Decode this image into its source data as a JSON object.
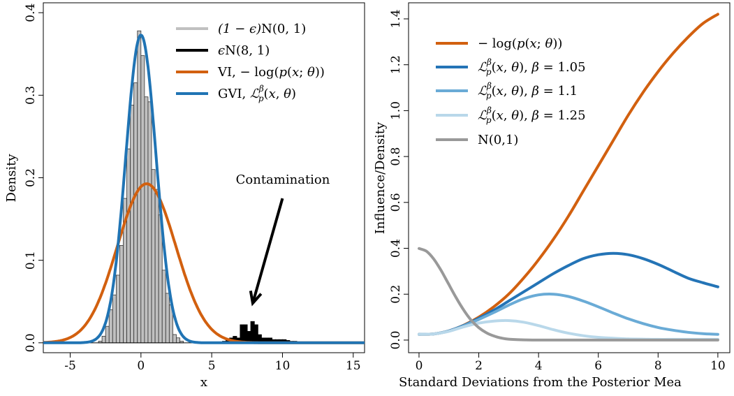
{
  "chart_data": [
    {
      "type": "histogram",
      "title": "",
      "xlabel": "x",
      "ylabel": "Density",
      "xlim": [
        -6.9,
        15.8
      ],
      "ylim": [
        -0.012,
        0.412
      ],
      "xticks": [
        -5,
        0,
        5,
        10,
        15
      ],
      "xtick_labels": [
        "-5",
        "0",
        "5",
        "10",
        "15"
      ],
      "yticks": [
        0.0,
        0.1,
        0.2,
        0.3,
        0.4
      ],
      "ytick_labels": [
        "0.0",
        "0.1",
        "0.2",
        "0.3",
        "0.4"
      ],
      "grid": false,
      "legend_position": "top-right",
      "bin_width": 0.25,
      "histogram_main": {
        "name": "(1 − ϵ)N(0, 1)",
        "color": "#c0c0c0",
        "bin_starts": [
          -3.0,
          -2.75,
          -2.5,
          -2.25,
          -2.0,
          -1.75,
          -1.5,
          -1.25,
          -1.0,
          -0.75,
          -0.5,
          -0.25,
          0.0,
          0.25,
          0.5,
          0.75,
          1.0,
          1.25,
          1.5,
          1.75,
          2.0,
          2.25,
          2.5,
          2.75
        ],
        "density": [
          0.002,
          0.008,
          0.02,
          0.04,
          0.058,
          0.082,
          0.118,
          0.175,
          0.235,
          0.288,
          0.315,
          0.378,
          0.348,
          0.298,
          0.292,
          0.21,
          0.186,
          0.155,
          0.088,
          0.06,
          0.046,
          0.01,
          0.006,
          0.002
        ]
      },
      "histogram_contamination": {
        "name": "ϵN(8, 1)",
        "color": "#000000",
        "bin_starts": [
          5.75,
          6.0,
          6.25,
          6.5,
          6.75,
          7.0,
          7.25,
          7.5,
          7.75,
          8.0,
          8.25,
          8.5,
          8.75,
          9.0,
          9.25,
          9.5,
          9.75,
          10.0,
          10.25,
          10.5,
          10.75
        ],
        "density": [
          0.002,
          0.004,
          0.006,
          0.008,
          0.006,
          0.022,
          0.022,
          0.014,
          0.026,
          0.022,
          0.01,
          0.006,
          0.006,
          0.006,
          0.004,
          0.004,
          0.004,
          0.004,
          0.003,
          0.002,
          0.002
        ]
      },
      "curves": [
        {
          "name": "VI, −log(p(x; θ))",
          "color": "#d2600f",
          "mean": 0.4,
          "sd": 2.07
        },
        {
          "name": "GVI, Lβp(x, θ)",
          "color": "#2074b4",
          "mean": 0.0,
          "sd": 1.07
        }
      ],
      "legend": [
        {
          "symbol": "(1 − ϵ)N(0, 1)",
          "color": "#c0c0c0"
        },
        {
          "symbol": "ϵN(8, 1)",
          "color": "#000000"
        },
        {
          "symbol": "VI, −log(p(x; θ))",
          "color": "#d2600f"
        },
        {
          "symbol": "GVI, Lβp(x, θ)",
          "color": "#2074b4"
        }
      ],
      "annotation": {
        "text": "Contamination",
        "arrow_from": [
          10.0,
          0.175
        ],
        "arrow_to": [
          7.9,
          0.048
        ]
      }
    },
    {
      "type": "line",
      "title": "",
      "xlabel": "Standard Deviations from the Posterior Mea",
      "ylabel": "Influence/Density",
      "xlim": [
        -0.35,
        10.4
      ],
      "ylim": [
        -0.055,
        1.47
      ],
      "xticks": [
        0,
        2,
        4,
        6,
        8,
        10
      ],
      "xtick_labels": [
        "0",
        "2",
        "4",
        "6",
        "8",
        "10"
      ],
      "yticks": [
        0.0,
        0.2,
        0.4,
        0.6,
        0.8,
        1.0,
        1.2,
        1.4
      ],
      "ytick_labels": [
        "0.0",
        "0.2",
        "0.4",
        "0.6",
        "0.8",
        "1.0",
        "1.2",
        "1.4"
      ],
      "grid": false,
      "legend_position": "top-left",
      "series": [
        {
          "name": "−log(p(x; θ))",
          "color": "#d2600f",
          "x": [
            0,
            0.5,
            1,
            1.5,
            2,
            2.5,
            3,
            3.5,
            4,
            4.5,
            5,
            5.5,
            6,
            6.5,
            7,
            7.5,
            8,
            8.5,
            9,
            9.5,
            10
          ],
          "y": [
            0.025,
            0.027,
            0.04,
            0.065,
            0.1,
            0.145,
            0.2,
            0.27,
            0.35,
            0.44,
            0.54,
            0.65,
            0.76,
            0.87,
            0.98,
            1.08,
            1.17,
            1.25,
            1.32,
            1.38,
            1.42
          ]
        },
        {
          "name": "Lβp(x, θ), β = 1.05",
          "color": "#2474b6",
          "x": [
            0,
            0.5,
            1,
            1.5,
            2,
            2.5,
            3,
            3.5,
            4,
            4.5,
            5,
            5.5,
            6,
            6.5,
            7,
            7.5,
            8,
            8.5,
            9,
            9.5,
            10
          ],
          "y": [
            0.025,
            0.027,
            0.04,
            0.064,
            0.095,
            0.13,
            0.17,
            0.21,
            0.25,
            0.29,
            0.325,
            0.355,
            0.372,
            0.378,
            0.372,
            0.355,
            0.33,
            0.3,
            0.27,
            0.25,
            0.232
          ]
        },
        {
          "name": "Lβp(x, θ), β = 1.1",
          "color": "#6aabd6",
          "x": [
            0,
            0.5,
            1,
            1.5,
            2,
            2.5,
            3,
            3.5,
            4,
            4.5,
            5,
            5.5,
            6,
            6.5,
            7,
            7.5,
            8,
            8.5,
            9,
            9.5,
            10
          ],
          "y": [
            0.025,
            0.027,
            0.039,
            0.062,
            0.09,
            0.12,
            0.152,
            0.18,
            0.197,
            0.2,
            0.19,
            0.17,
            0.145,
            0.118,
            0.093,
            0.072,
            0.055,
            0.043,
            0.034,
            0.028,
            0.025
          ]
        },
        {
          "name": "Lβp(x, θ), β = 1.25",
          "color": "#b9d8ea",
          "x": [
            0,
            0.5,
            1,
            1.5,
            2,
            2.5,
            3,
            3.5,
            4,
            4.5,
            5,
            5.5,
            6,
            6.5,
            7,
            7.5,
            8,
            8.5,
            9,
            9.5,
            10
          ],
          "y": [
            0.025,
            0.027,
            0.038,
            0.058,
            0.074,
            0.083,
            0.085,
            0.078,
            0.063,
            0.045,
            0.03,
            0.019,
            0.012,
            0.008,
            0.005,
            0.004,
            0.003,
            0.003,
            0.003,
            0.003,
            0.003
          ]
        },
        {
          "name": "N(0,1)",
          "color": "#999999",
          "x": [
            0,
            0.25,
            0.5,
            0.75,
            1,
            1.25,
            1.5,
            1.75,
            2,
            2.25,
            2.5,
            2.75,
            3,
            3.5,
            4,
            5,
            6,
            7,
            8,
            9,
            10
          ],
          "y": [
            0.399,
            0.387,
            0.352,
            0.301,
            0.242,
            0.183,
            0.13,
            0.086,
            0.054,
            0.032,
            0.018,
            0.009,
            0.004,
            0.001,
            0.0,
            0.0,
            0.0,
            0.0,
            0.0,
            0.0,
            0.0
          ]
        }
      ],
      "legend": [
        {
          "symbol": "−log(p(x; θ))",
          "color": "#d2600f"
        },
        {
          "symbol": "Lβp(x, θ), β = 1.05",
          "color": "#2474b6"
        },
        {
          "symbol": "Lβp(x, θ), β = 1.1",
          "color": "#6aabd6"
        },
        {
          "symbol": "Lβp(x, θ), β = 1.25",
          "color": "#b9d8ea"
        },
        {
          "symbol": "N(0,1)",
          "color": "#999999"
        }
      ]
    }
  ]
}
